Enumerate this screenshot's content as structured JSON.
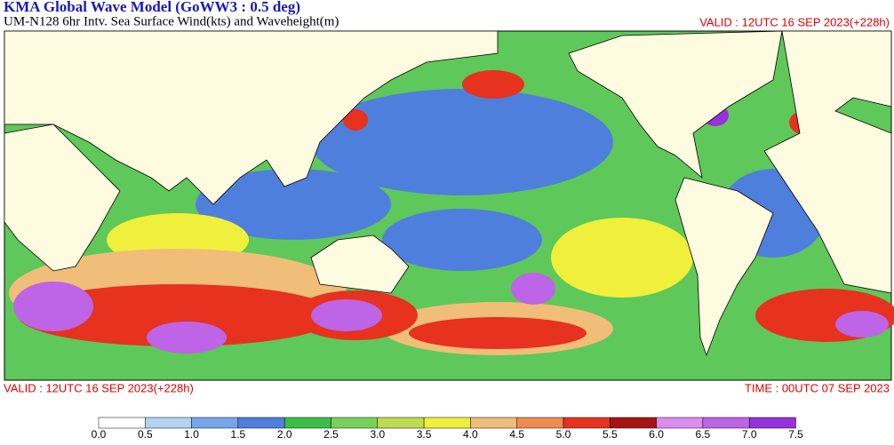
{
  "header": {
    "title": "KMA  Global Wave Model (GoWW3 : 0.5 deg)",
    "subtitle": "UM-N128  6hr Intv. Sea Surface Wind(kts) and Waveheight(m)",
    "valid": "VALID : 12UTC 16 SEP 2023(+228h)"
  },
  "footer": {
    "valid": "VALID : 12UTC 16 SEP 2023(+228h)",
    "time": "TIME : 00UTC 07 SEP 2023"
  },
  "colorbar": {
    "ticks": [
      "0.0",
      "0.5",
      "1.0",
      "1.5",
      "2.0",
      "2.5",
      "3.0",
      "3.5",
      "4.0",
      "4.5",
      "5.0",
      "5.5",
      "6.0",
      "6.5",
      "7.0",
      "7.5"
    ],
    "colors": [
      "#ffffff",
      "#b4d2f2",
      "#78a5e8",
      "#4f7fdc",
      "#3cbe46",
      "#78d25a",
      "#bedc50",
      "#f0f03c",
      "#f0be78",
      "#f08c50",
      "#e6321e",
      "#a51414",
      "#dc8cf0",
      "#be64e6",
      "#9632dc"
    ]
  }
}
